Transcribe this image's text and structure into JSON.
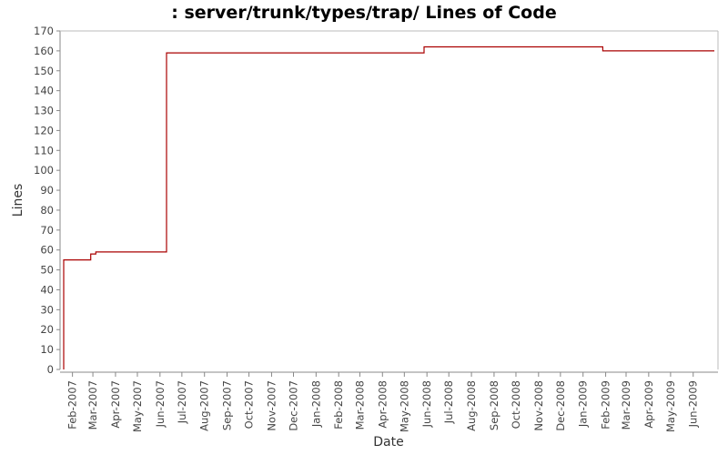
{
  "chart_data": {
    "type": "line",
    "title": ": server/trunk/types/trap/ Lines of Code",
    "xlabel": "Date",
    "ylabel": "Lines",
    "ylim": [
      0,
      170
    ],
    "yticks": [
      0,
      10,
      20,
      30,
      40,
      50,
      60,
      70,
      80,
      90,
      100,
      110,
      120,
      130,
      140,
      150,
      160,
      170
    ],
    "xlim": [
      "2007-01-15",
      "2009-07-05"
    ],
    "categories": [
      "Feb-2007",
      "Mar-2007",
      "Apr-2007",
      "May-2007",
      "Jun-2007",
      "Jul-2007",
      "Aug-2007",
      "Sep-2007",
      "Oct-2007",
      "Nov-2007",
      "Dec-2007",
      "Jan-2008",
      "Feb-2008",
      "Mar-2008",
      "Apr-2008",
      "May-2008",
      "Jun-2008",
      "Jul-2008",
      "Aug-2008",
      "Sep-2008",
      "Oct-2008",
      "Nov-2008",
      "Dec-2008",
      "Jan-2009",
      "Feb-2009",
      "Mar-2009",
      "Apr-2009",
      "May-2009",
      "Jun-2009"
    ],
    "grid": false,
    "line_color": "#aa0000",
    "series": [
      {
        "step": true,
        "x": [
          "2007-01-20",
          "2007-01-20",
          "2007-02-26",
          "2007-03-05",
          "2007-06-10",
          "2008-05-28",
          "2009-01-28",
          "2009-06-30"
        ],
        "y": [
          0,
          55,
          58,
          59,
          159,
          162,
          160,
          160
        ]
      }
    ]
  }
}
